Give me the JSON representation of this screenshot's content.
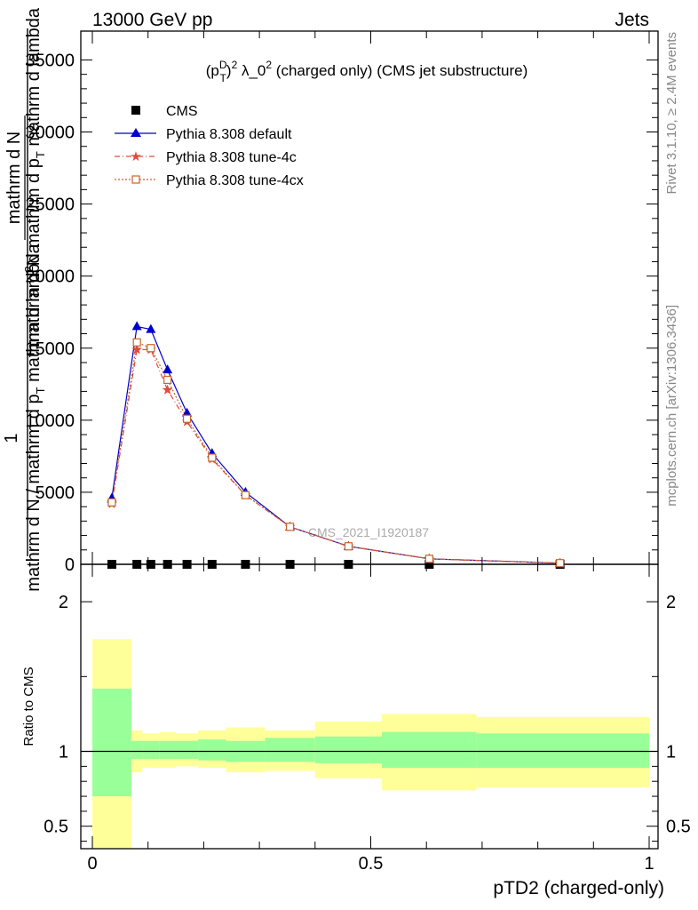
{
  "header": {
    "left": "13000 GeV pp",
    "right": "Jets"
  },
  "side": {
    "rivet": "Rivet 3.1.10, ≥ 2.4M events",
    "mcplots": "mcplots.cern.ch [arXiv:1306.3436]"
  },
  "watermark": "CMS_2021_I1920187",
  "colors": {
    "cms": "#000000",
    "default": "#0000cc",
    "tune4c": "#e04a3a",
    "tune4cx": "#c8642c",
    "band_inner": "#99ff99",
    "band_outer": "#ffff99"
  },
  "chart_data": [
    {
      "type": "line",
      "title_parts": {
        "p": "(p",
        "sup1": "D",
        "sub1": "T",
        "close": ")",
        "sup2": "2",
        "mid": " λ_0",
        "sup3": "2",
        "rest": " (charged only) (CMS jet substructure)"
      },
      "ylabel_parts": {
        "one": "1",
        "num": "mathrm d N",
        "den": "mathrm d N / mathrm d p",
        "den_sub": "T",
        "den_rest": " mathrm d lambda",
        "outer_num": "mathrm d",
        "outer_num_sup": "2",
        "outer_num_rest": "N",
        "outer_den": "mathrm d p",
        "outer_den_sub": "T",
        "outer_den_rest": " mathrm d lambda"
      },
      "ylim": [
        0,
        37000
      ],
      "yticks": [
        0,
        5000,
        10000,
        15000,
        20000,
        25000,
        30000,
        35000
      ],
      "ytick_labels": [
        "0",
        "5000",
        "10000",
        "15000",
        "20000",
        "25000",
        "30000",
        "35000"
      ],
      "xlim": [
        0,
        1
      ],
      "x": [
        0.035,
        0.08,
        0.105,
        0.135,
        0.17,
        0.215,
        0.275,
        0.355,
        0.46,
        0.605,
        0.84
      ],
      "series": [
        {
          "name": "CMS",
          "marker": "square",
          "values": [
            0,
            0,
            0,
            0,
            0,
            0,
            0,
            0,
            0,
            0,
            0
          ]
        },
        {
          "name": "Pythia 8.308 default",
          "marker": "triangle",
          "values": [
            4600,
            16500,
            16300,
            13500,
            10500,
            7700,
            5000,
            2600,
            1250,
            380,
            80
          ]
        },
        {
          "name": "Pythia 8.308 tune-4c",
          "marker": "star",
          "values": [
            4200,
            14900,
            14900,
            12100,
            9900,
            7300,
            4800,
            2600,
            1250,
            380,
            80
          ]
        },
        {
          "name": "Pythia 8.308 tune-4cx",
          "marker": "opensquare",
          "values": [
            4300,
            15400,
            15000,
            12800,
            10100,
            7400,
            4800,
            2600,
            1250,
            380,
            80
          ]
        }
      ]
    },
    {
      "type": "area",
      "ylabel": "Ratio to CMS",
      "xlabel": "pTD2 (charged-only)",
      "ylim": [
        0.35,
        2.25
      ],
      "yticks": [
        0.5,
        1,
        2
      ],
      "ytick_labels": [
        "0.5",
        "1",
        "2"
      ],
      "xticks": [
        0,
        0.5,
        1
      ],
      "xtick_labels": [
        "0",
        "0.5",
        "1"
      ],
      "bins": [
        0,
        0.07,
        0.09,
        0.12,
        0.15,
        0.19,
        0.24,
        0.31,
        0.4,
        0.52,
        0.69,
        1.0
      ],
      "inner_up": [
        1.42,
        1.07,
        1.07,
        1.07,
        1.07,
        1.08,
        1.07,
        1.09,
        1.1,
        1.13,
        1.12
      ],
      "inner_down": [
        0.7,
        0.95,
        0.95,
        0.95,
        0.95,
        0.94,
        0.93,
        0.93,
        0.92,
        0.89,
        0.89
      ],
      "outer_up": [
        1.75,
        1.14,
        1.12,
        1.13,
        1.12,
        1.14,
        1.16,
        1.14,
        1.2,
        1.25,
        1.23
      ],
      "outer_down": [
        0.35,
        0.86,
        0.89,
        0.89,
        0.9,
        0.89,
        0.86,
        0.87,
        0.82,
        0.74,
        0.76
      ]
    }
  ]
}
